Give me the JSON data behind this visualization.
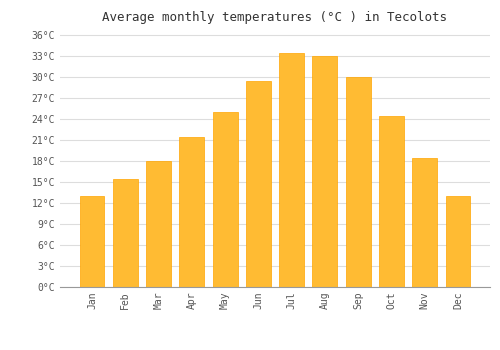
{
  "title": "Average monthly temperatures (°C ) in Tecolots",
  "months": [
    "Jan",
    "Feb",
    "Mar",
    "Apr",
    "May",
    "Jun",
    "Jul",
    "Aug",
    "Sep",
    "Oct",
    "Nov",
    "Dec"
  ],
  "values": [
    13,
    15.5,
    18,
    21.5,
    25,
    29.5,
    33.5,
    33,
    30,
    24.5,
    18.5,
    13
  ],
  "bar_color": "#FFBB33",
  "bar_edge_color": "#FFA500",
  "bar_color_gradient_top": "#FFD060",
  "background_color": "#FFFFFF",
  "grid_color": "#DDDDDD",
  "ylim": [
    0,
    37
  ],
  "yticks": [
    0,
    3,
    6,
    9,
    12,
    15,
    18,
    21,
    24,
    27,
    30,
    33,
    36
  ],
  "ytick_labels": [
    "0°C",
    "3°C",
    "6°C",
    "9°C",
    "12°C",
    "15°C",
    "18°C",
    "21°C",
    "24°C",
    "27°C",
    "30°C",
    "33°C",
    "36°C"
  ],
  "title_fontsize": 9,
  "tick_fontsize": 7,
  "font_family": "monospace",
  "bar_width": 0.75
}
